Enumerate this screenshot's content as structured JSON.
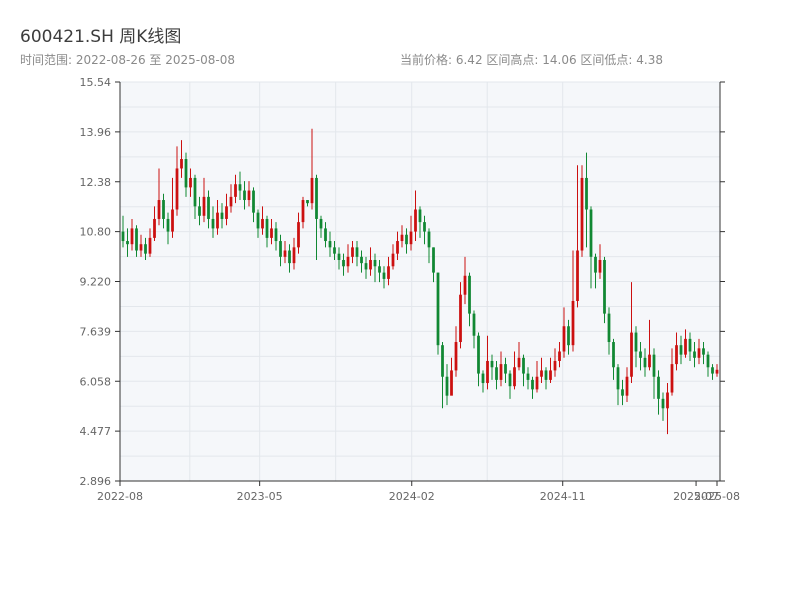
{
  "title": "600421.SH 周K线图",
  "subtitle_range": "时间范围: 2022-08-26 至 2025-08-08",
  "subtitle_stats": "当前价格: 6.42   区间高点: 14.06   区间低点: 4.38",
  "colors": {
    "up": "#cc1010",
    "down": "#118833",
    "plot_bg": "#f5f7fa",
    "grid": "#e3e7ec",
    "axis": "#333333"
  },
  "chart_data": {
    "type": "candlestick",
    "title": "600421.SH 周K线图",
    "ylim": [
      2.896,
      15.54
    ],
    "yticks": [
      "15.54",
      "13.96",
      "12.38",
      "10.80",
      "9.220",
      "7.639",
      "6.058",
      "4.477",
      "2.896"
    ],
    "xticks": [
      {
        "label": "2022-08",
        "date": "2022-08-01"
      },
      {
        "label": "2023-05",
        "date": "2023-05-01"
      },
      {
        "label": "2024-02",
        "date": "2024-02-01"
      },
      {
        "label": "2024-11",
        "date": "2024-11-01"
      },
      {
        "label": "2025-07",
        "date": "2025-07-01"
      },
      {
        "label": "2025-08",
        "date": "2025-08-08"
      }
    ],
    "date_range": [
      "2022-08-26",
      "2025-08-08"
    ],
    "grid": true,
    "candles": [
      [
        10.8,
        10.5,
        11.3,
        10.3
      ],
      [
        10.5,
        10.4,
        10.9,
        10.0
      ],
      [
        10.4,
        10.9,
        11.2,
        10.2
      ],
      [
        10.9,
        10.2,
        11.0,
        10.0
      ],
      [
        10.2,
        10.4,
        10.7,
        10.0
      ],
      [
        10.4,
        10.1,
        10.6,
        9.9
      ],
      [
        10.1,
        10.6,
        10.9,
        10.0
      ],
      [
        10.6,
        11.2,
        11.6,
        10.5
      ],
      [
        11.2,
        11.8,
        12.8,
        11.0
      ],
      [
        11.8,
        11.2,
        12.0,
        10.9
      ],
      [
        11.2,
        10.8,
        11.4,
        10.4
      ],
      [
        10.8,
        11.5,
        12.5,
        10.6
      ],
      [
        11.5,
        12.8,
        13.5,
        11.3
      ],
      [
        12.8,
        13.1,
        13.7,
        12.5
      ],
      [
        13.1,
        12.2,
        13.3,
        11.9
      ],
      [
        12.2,
        12.5,
        12.8,
        11.9
      ],
      [
        12.5,
        11.6,
        12.6,
        11.2
      ],
      [
        11.6,
        11.3,
        11.9,
        11.0
      ],
      [
        11.3,
        11.9,
        12.5,
        11.1
      ],
      [
        11.9,
        11.2,
        12.1,
        10.9
      ],
      [
        11.2,
        10.9,
        11.6,
        10.6
      ],
      [
        10.9,
        11.4,
        11.8,
        10.7
      ],
      [
        11.4,
        11.2,
        11.7,
        10.9
      ],
      [
        11.2,
        11.6,
        12.0,
        11.0
      ],
      [
        11.6,
        11.9,
        12.3,
        11.4
      ],
      [
        11.9,
        12.3,
        12.6,
        11.7
      ],
      [
        12.3,
        12.1,
        12.7,
        11.8
      ],
      [
        12.1,
        11.8,
        12.4,
        11.5
      ],
      [
        11.8,
        12.1,
        12.4,
        11.6
      ],
      [
        12.1,
        11.4,
        12.2,
        11.1
      ],
      [
        11.4,
        10.9,
        11.5,
        10.6
      ],
      [
        10.9,
        11.2,
        11.6,
        10.7
      ],
      [
        11.2,
        10.6,
        11.3,
        10.3
      ],
      [
        10.6,
        10.9,
        11.2,
        10.4
      ],
      [
        10.9,
        10.5,
        11.1,
        10.2
      ],
      [
        10.5,
        10.0,
        10.7,
        9.7
      ],
      [
        10.0,
        10.2,
        10.5,
        9.8
      ],
      [
        10.2,
        9.8,
        10.4,
        9.5
      ],
      [
        9.8,
        10.3,
        10.6,
        9.6
      ],
      [
        10.3,
        11.1,
        11.4,
        10.1
      ],
      [
        11.1,
        11.8,
        11.9,
        10.9
      ],
      [
        11.8,
        11.7,
        11.8,
        11.6
      ],
      [
        11.7,
        12.5,
        14.06,
        11.5
      ],
      [
        12.5,
        11.2,
        12.6,
        9.9
      ],
      [
        11.2,
        10.9,
        11.3,
        10.6
      ],
      [
        10.9,
        10.5,
        11.1,
        10.3
      ],
      [
        10.5,
        10.3,
        10.8,
        10.0
      ],
      [
        10.3,
        10.1,
        10.5,
        9.9
      ],
      [
        10.1,
        9.9,
        10.3,
        9.6
      ],
      [
        9.9,
        9.7,
        10.1,
        9.4
      ],
      [
        9.7,
        10.0,
        10.4,
        9.5
      ],
      [
        10.0,
        10.3,
        10.5,
        9.8
      ],
      [
        10.3,
        10.0,
        10.5,
        9.7
      ],
      [
        10.0,
        9.8,
        10.2,
        9.5
      ],
      [
        9.8,
        9.6,
        10.0,
        9.3
      ],
      [
        9.6,
        9.9,
        10.3,
        9.4
      ],
      [
        9.9,
        9.7,
        10.1,
        9.2
      ],
      [
        9.7,
        9.5,
        9.9,
        9.2
      ],
      [
        9.5,
        9.3,
        9.7,
        9.0
      ],
      [
        9.3,
        9.7,
        10.0,
        9.1
      ],
      [
        9.7,
        10.1,
        10.4,
        9.6
      ],
      [
        10.1,
        10.5,
        10.8,
        9.9
      ],
      [
        10.5,
        10.7,
        11.0,
        10.3
      ],
      [
        10.7,
        10.4,
        10.9,
        10.1
      ],
      [
        10.4,
        10.8,
        11.3,
        10.2
      ],
      [
        10.8,
        11.5,
        12.1,
        10.5
      ],
      [
        11.5,
        11.1,
        11.6,
        10.6
      ],
      [
        11.1,
        10.8,
        11.3,
        10.4
      ],
      [
        10.8,
        10.3,
        10.9,
        9.8
      ],
      [
        10.3,
        9.5,
        10.3,
        9.2
      ],
      [
        9.5,
        7.2,
        9.5,
        6.9
      ],
      [
        7.2,
        6.2,
        7.3,
        5.2
      ],
      [
        6.2,
        5.6,
        6.6,
        5.3
      ],
      [
        5.6,
        6.4,
        6.8,
        5.9
      ],
      [
        6.4,
        7.3,
        7.8,
        6.2
      ],
      [
        7.3,
        8.8,
        9.2,
        7.1
      ],
      [
        8.8,
        9.4,
        10.0,
        8.5
      ],
      [
        9.4,
        8.2,
        9.5,
        7.8
      ],
      [
        8.2,
        7.5,
        8.3,
        7.1
      ],
      [
        7.5,
        6.3,
        7.6,
        5.9
      ],
      [
        6.3,
        6.0,
        6.4,
        5.7
      ],
      [
        6.0,
        6.7,
        7.5,
        5.8
      ],
      [
        6.7,
        6.5,
        6.9,
        6.1
      ],
      [
        6.5,
        6.1,
        6.7,
        5.8
      ],
      [
        6.1,
        6.6,
        7.0,
        5.9
      ],
      [
        6.6,
        6.3,
        6.8,
        6.0
      ],
      [
        6.3,
        5.9,
        6.4,
        5.5
      ],
      [
        5.9,
        6.5,
        7.0,
        5.8
      ],
      [
        6.5,
        6.8,
        7.3,
        6.4
      ],
      [
        6.8,
        6.3,
        6.9,
        5.9
      ],
      [
        6.3,
        6.1,
        6.5,
        5.8
      ],
      [
        6.1,
        5.8,
        6.2,
        5.5
      ],
      [
        5.8,
        6.2,
        6.7,
        5.7
      ],
      [
        6.2,
        6.4,
        6.8,
        6.0
      ],
      [
        6.4,
        6.1,
        6.5,
        5.8
      ],
      [
        6.1,
        6.4,
        6.8,
        6.0
      ],
      [
        6.4,
        6.7,
        7.1,
        6.2
      ],
      [
        6.7,
        7.0,
        7.3,
        6.5
      ],
      [
        7.0,
        7.8,
        8.4,
        6.8
      ],
      [
        7.8,
        7.2,
        8.0,
        6.9
      ],
      [
        7.2,
        8.6,
        10.2,
        7.0
      ],
      [
        8.6,
        10.2,
        12.9,
        8.4
      ],
      [
        10.2,
        12.5,
        12.9,
        10.0
      ],
      [
        12.5,
        11.5,
        13.3,
        10.3
      ],
      [
        11.5,
        10.0,
        11.6,
        9.0
      ],
      [
        10.0,
        9.5,
        10.1,
        9.0
      ],
      [
        9.5,
        9.9,
        10.4,
        9.3
      ],
      [
        9.9,
        8.2,
        10.0,
        7.9
      ],
      [
        8.2,
        7.3,
        8.4,
        6.9
      ],
      [
        7.3,
        6.5,
        7.4,
        6.1
      ],
      [
        6.5,
        5.8,
        6.6,
        5.3
      ],
      [
        5.8,
        5.6,
        6.1,
        5.3
      ],
      [
        5.6,
        6.2,
        6.5,
        5.4
      ],
      [
        6.2,
        7.6,
        9.2,
        6.0
      ],
      [
        7.6,
        7.0,
        7.8,
        6.5
      ],
      [
        7.0,
        6.8,
        7.3,
        6.4
      ],
      [
        6.8,
        6.5,
        7.1,
        6.2
      ],
      [
        6.5,
        6.9,
        8.0,
        6.4
      ],
      [
        6.9,
        6.2,
        7.1,
        5.5
      ],
      [
        6.2,
        5.5,
        6.4,
        5.0
      ],
      [
        5.5,
        5.2,
        5.7,
        4.8
      ],
      [
        5.2,
        5.7,
        6.0,
        4.38
      ],
      [
        5.7,
        6.6,
        7.1,
        5.6
      ],
      [
        6.6,
        7.2,
        7.6,
        6.4
      ],
      [
        7.2,
        6.9,
        7.5,
        6.6
      ],
      [
        6.9,
        7.4,
        7.7,
        6.8
      ],
      [
        7.4,
        7.0,
        7.6,
        6.7
      ],
      [
        7.0,
        6.8,
        7.3,
        6.5
      ],
      [
        6.8,
        7.1,
        7.4,
        6.6
      ],
      [
        7.1,
        6.9,
        7.3,
        6.6
      ],
      [
        6.9,
        6.5,
        7.0,
        6.2
      ],
      [
        6.5,
        6.3,
        6.6,
        6.1
      ],
      [
        6.3,
        6.42,
        6.6,
        6.2
      ]
    ]
  }
}
